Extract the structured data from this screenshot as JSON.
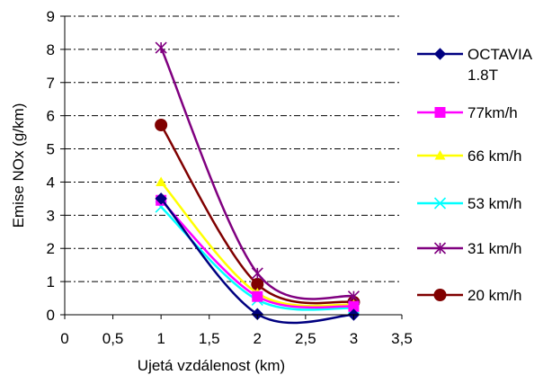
{
  "chart_data": {
    "type": "line",
    "xlabel": "Ujetá vzdálenost (km)",
    "ylabel": "Emise NOx (g/km)",
    "xlim": [
      0,
      3.5
    ],
    "ylim": [
      0,
      9
    ],
    "x_ticks": [
      "0",
      "0,5",
      "1",
      "1,5",
      "2",
      "2,5",
      "3",
      "3,5"
    ],
    "y_ticks": [
      "0",
      "1",
      "2",
      "3",
      "4",
      "5",
      "6",
      "7",
      "8",
      "9"
    ],
    "grid": "horizontal dash-dot",
    "legend_position": "right",
    "x": [
      1,
      2,
      3
    ],
    "series": [
      {
        "name": "OCTAVIA 1.8T",
        "name_lines": [
          "OCTAVIA",
          "1.8T"
        ],
        "values": [
          3.5,
          0.02,
          0.0
        ],
        "color": "#000080",
        "marker": "diamond"
      },
      {
        "name": "77km/h",
        "name_lines": [
          "77km/h"
        ],
        "values": [
          3.45,
          0.55,
          0.25
        ],
        "color": "#ff00ff",
        "marker": "square"
      },
      {
        "name": "66 km/h",
        "name_lines": [
          "66 km/h"
        ],
        "values": [
          4.0,
          0.65,
          0.3
        ],
        "color": "#ffff00",
        "marker": "triangle"
      },
      {
        "name": "53 km/h",
        "name_lines": [
          "53 km/h"
        ],
        "values": [
          3.25,
          0.45,
          0.2
        ],
        "color": "#00ffff",
        "marker": "x"
      },
      {
        "name": "31 km/h",
        "name_lines": [
          "31 km/h"
        ],
        "values": [
          8.05,
          1.25,
          0.55
        ],
        "color": "#800080",
        "marker": "star"
      },
      {
        "name": "20 km/h",
        "name_lines": [
          "20 km/h"
        ],
        "values": [
          5.72,
          0.92,
          0.38
        ],
        "color": "#800000",
        "marker": "circle"
      }
    ]
  }
}
